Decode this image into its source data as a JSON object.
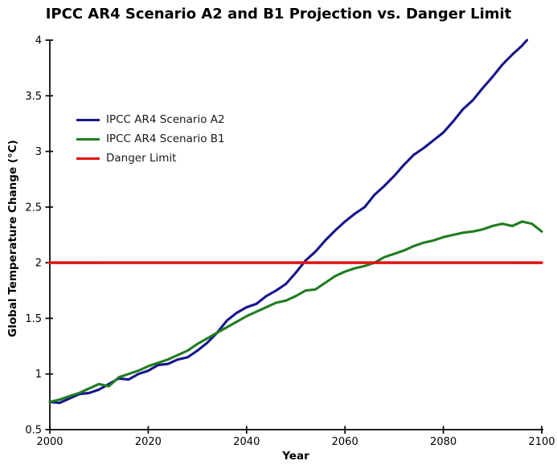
{
  "title": "IPCC AR4 Scenario A2 and B1 Projection vs. Danger Limit",
  "colors": {
    "scenario_a2": "#16168C",
    "scenario_b1": "#1F7D1F",
    "danger_limit": "#E01212",
    "axis": "#000000",
    "text": "#000000",
    "background": "#FFFFFF"
  },
  "chart_data": {
    "type": "line",
    "title": "IPCC AR4 Scenario A2 and B1 Projection vs. Danger Limit",
    "xlabel": "Year",
    "ylabel": "Global Temperature Change (°C)",
    "xlim": [
      2000,
      2100
    ],
    "ylim": [
      0.5,
      4
    ],
    "x_ticks": [
      2000,
      2020,
      2040,
      2060,
      2080,
      2100
    ],
    "y_ticks": [
      0.5,
      1,
      1.5,
      2,
      2.5,
      3,
      3.5,
      4
    ],
    "grid": false,
    "legend_position": "upper-left-inside",
    "series": [
      {
        "name": "IPCC AR4 Scenario A2",
        "color": "#16168C",
        "points": [
          [
            2000,
            0.75
          ],
          [
            2002,
            0.74
          ],
          [
            2004,
            0.78
          ],
          [
            2006,
            0.82
          ],
          [
            2008,
            0.83
          ],
          [
            2010,
            0.86
          ],
          [
            2012,
            0.91
          ],
          [
            2014,
            0.96
          ],
          [
            2016,
            0.95
          ],
          [
            2018,
            1.0
          ],
          [
            2020,
            1.03
          ],
          [
            2022,
            1.08
          ],
          [
            2024,
            1.09
          ],
          [
            2026,
            1.13
          ],
          [
            2028,
            1.15
          ],
          [
            2030,
            1.21
          ],
          [
            2032,
            1.28
          ],
          [
            2034,
            1.37
          ],
          [
            2036,
            1.48
          ],
          [
            2038,
            1.55
          ],
          [
            2040,
            1.6
          ],
          [
            2042,
            1.63
          ],
          [
            2044,
            1.7
          ],
          [
            2046,
            1.75
          ],
          [
            2048,
            1.81
          ],
          [
            2050,
            1.91
          ],
          [
            2052,
            2.02
          ],
          [
            2054,
            2.1
          ],
          [
            2056,
            2.2
          ],
          [
            2058,
            2.29
          ],
          [
            2060,
            2.37
          ],
          [
            2062,
            2.44
          ],
          [
            2064,
            2.5
          ],
          [
            2066,
            2.61
          ],
          [
            2068,
            2.69
          ],
          [
            2070,
            2.78
          ],
          [
            2072,
            2.88
          ],
          [
            2074,
            2.97
          ],
          [
            2076,
            3.03
          ],
          [
            2078,
            3.1
          ],
          [
            2080,
            3.17
          ],
          [
            2082,
            3.27
          ],
          [
            2084,
            3.38
          ],
          [
            2086,
            3.46
          ],
          [
            2088,
            3.57
          ],
          [
            2090,
            3.67
          ],
          [
            2092,
            3.78
          ],
          [
            2094,
            3.87
          ],
          [
            2096,
            3.95
          ],
          [
            2097,
            4.0
          ]
        ]
      },
      {
        "name": "IPCC AR4 Scenario B1",
        "color": "#1F7D1F",
        "points": [
          [
            2000,
            0.75
          ],
          [
            2002,
            0.77
          ],
          [
            2004,
            0.8
          ],
          [
            2006,
            0.83
          ],
          [
            2008,
            0.87
          ],
          [
            2010,
            0.91
          ],
          [
            2012,
            0.89
          ],
          [
            2014,
            0.97
          ],
          [
            2016,
            1.0
          ],
          [
            2018,
            1.03
          ],
          [
            2020,
            1.07
          ],
          [
            2022,
            1.1
          ],
          [
            2024,
            1.13
          ],
          [
            2026,
            1.17
          ],
          [
            2028,
            1.21
          ],
          [
            2030,
            1.27
          ],
          [
            2032,
            1.32
          ],
          [
            2034,
            1.37
          ],
          [
            2036,
            1.42
          ],
          [
            2038,
            1.47
          ],
          [
            2040,
            1.52
          ],
          [
            2042,
            1.56
          ],
          [
            2044,
            1.6
          ],
          [
            2046,
            1.64
          ],
          [
            2048,
            1.66
          ],
          [
            2050,
            1.7
          ],
          [
            2052,
            1.75
          ],
          [
            2054,
            1.76
          ],
          [
            2056,
            1.82
          ],
          [
            2058,
            1.88
          ],
          [
            2060,
            1.92
          ],
          [
            2062,
            1.95
          ],
          [
            2064,
            1.97
          ],
          [
            2066,
            2.0
          ],
          [
            2068,
            2.05
          ],
          [
            2070,
            2.08
          ],
          [
            2072,
            2.11
          ],
          [
            2074,
            2.15
          ],
          [
            2076,
            2.18
          ],
          [
            2078,
            2.2
          ],
          [
            2080,
            2.23
          ],
          [
            2082,
            2.25
          ],
          [
            2084,
            2.27
          ],
          [
            2086,
            2.28
          ],
          [
            2088,
            2.3
          ],
          [
            2090,
            2.33
          ],
          [
            2092,
            2.35
          ],
          [
            2094,
            2.33
          ],
          [
            2096,
            2.37
          ],
          [
            2098,
            2.35
          ],
          [
            2100,
            2.28
          ]
        ]
      },
      {
        "name": "Danger Limit",
        "color": "#E01212",
        "points": [
          [
            2000,
            2
          ],
          [
            2100,
            2
          ]
        ]
      }
    ]
  }
}
